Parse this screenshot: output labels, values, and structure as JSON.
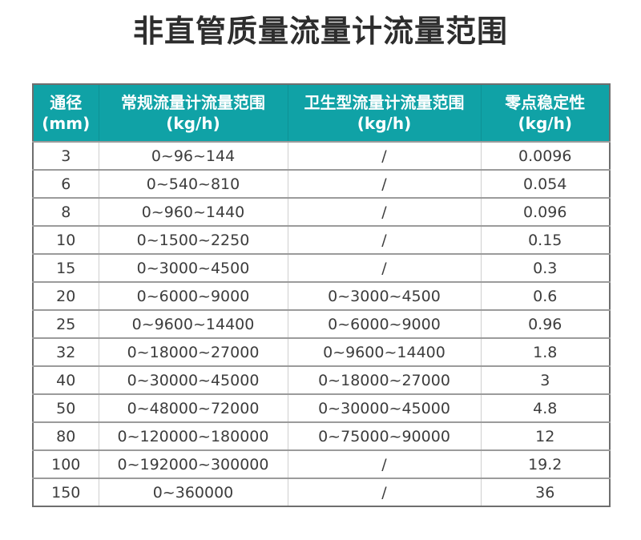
{
  "title": "非直管质量流量计流量范围",
  "colors": {
    "header_bg": "#10a2a6",
    "header_text": "#ffffff",
    "body_text": "#3d3d3d",
    "title_text": "#2d2d2d",
    "outer_border": "#6e6e6e",
    "row_border": "#9b9b9b",
    "column_border": "#cfcfcf"
  },
  "table": {
    "columns": [
      {
        "line1": "通径",
        "line2": "(mm)"
      },
      {
        "line1": "常规流量计流量范围",
        "line2": "(kg/h)"
      },
      {
        "line1": "卫生型流量计流量范围",
        "line2": "(kg/h)"
      },
      {
        "line1": "零点稳定性",
        "line2": "(kg/h)"
      }
    ],
    "column_keys": [
      "diameter",
      "regular-flow-range",
      "sanitary-flow-range",
      "zero-stability"
    ],
    "rows": [
      [
        "3",
        "0~96~144",
        "/",
        "0.0096"
      ],
      [
        "6",
        "0~540~810",
        "/",
        "0.054"
      ],
      [
        "8",
        "0~960~1440",
        "/",
        "0.096"
      ],
      [
        "10",
        "0~1500~2250",
        "/",
        "0.15"
      ],
      [
        "15",
        "0~3000~4500",
        "/",
        "0.3"
      ],
      [
        "20",
        "0~6000~9000",
        "0~3000~4500",
        "0.6"
      ],
      [
        "25",
        "0~9600~14400",
        "0~6000~9000",
        "0.96"
      ],
      [
        "32",
        "0~18000~27000",
        "0~9600~14400",
        "1.8"
      ],
      [
        "40",
        "0~30000~45000",
        "0~18000~27000",
        "3"
      ],
      [
        "50",
        "0~48000~72000",
        "0~30000~45000",
        "4.8"
      ],
      [
        "80",
        "0~120000~180000",
        "0~75000~90000",
        "12"
      ],
      [
        "100",
        "0~192000~300000",
        "/",
        "19.2"
      ],
      [
        "150",
        "0~360000",
        "/",
        "36"
      ]
    ]
  }
}
